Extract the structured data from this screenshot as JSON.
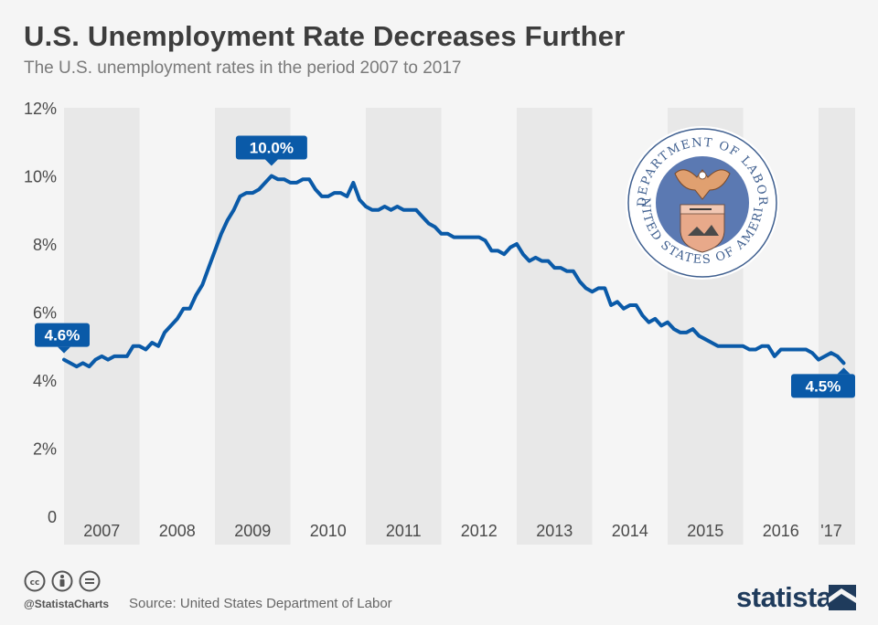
{
  "header": {
    "title": "U.S. Unemployment Rate Decreases Further",
    "subtitle": "The U.S. unemployment rates in the period 2007 to 2017"
  },
  "footer": {
    "handle": "@StatistaCharts",
    "source": "Source: United States Department of Labor",
    "brand": "statista",
    "icons": [
      "creative-commons-icon",
      "attribution-icon",
      "no-derivatives-icon"
    ]
  },
  "seal": {
    "top_text": "DEPARTMENT OF LABOR",
    "bottom_text": "UNITED STATES OF AMERICA"
  },
  "colors": {
    "line": "#0a5aa8",
    "band": "#e8e8e8",
    "background": "#f5f5f5",
    "text": "#3d3d3d"
  },
  "chart_data": {
    "type": "line",
    "title": "U.S. Unemployment Rate Decreases Further",
    "subtitle": "The U.S. unemployment rates in the period 2007 to 2017",
    "xlabel": "",
    "ylabel": "",
    "ylim": [
      0,
      12
    ],
    "yticks": [
      "0",
      "2%",
      "4%",
      "6%",
      "8%",
      "10%",
      "12%"
    ],
    "ytick_values": [
      0,
      2,
      4,
      6,
      8,
      10,
      12
    ],
    "x_start": "2007-01",
    "x_end": "2017-01",
    "x_tick_labels": [
      "2007",
      "2008",
      "2009",
      "2010",
      "2011",
      "2012",
      "2013",
      "2014",
      "2015",
      "2016",
      "'17"
    ],
    "grid": false,
    "legend": "none",
    "series": [
      {
        "frequency": "monthly",
        "values": [
          4.6,
          4.5,
          4.4,
          4.5,
          4.4,
          4.6,
          4.7,
          4.6,
          4.7,
          4.7,
          4.7,
          5.0,
          5.0,
          4.9,
          5.1,
          5.0,
          5.4,
          5.6,
          5.8,
          6.1,
          6.1,
          6.5,
          6.8,
          7.3,
          7.8,
          8.3,
          8.7,
          9.0,
          9.4,
          9.5,
          9.5,
          9.6,
          9.8,
          10.0,
          9.9,
          9.9,
          9.8,
          9.8,
          9.9,
          9.9,
          9.6,
          9.4,
          9.4,
          9.5,
          9.5,
          9.4,
          9.8,
          9.3,
          9.1,
          9.0,
          9.0,
          9.1,
          9.0,
          9.1,
          9.0,
          9.0,
          9.0,
          8.8,
          8.6,
          8.5,
          8.3,
          8.3,
          8.2,
          8.2,
          8.2,
          8.2,
          8.2,
          8.1,
          7.8,
          7.8,
          7.7,
          7.9,
          8.0,
          7.7,
          7.5,
          7.6,
          7.5,
          7.5,
          7.3,
          7.3,
          7.2,
          7.2,
          6.9,
          6.7,
          6.6,
          6.7,
          6.7,
          6.2,
          6.3,
          6.1,
          6.2,
          6.2,
          5.9,
          5.7,
          5.8,
          5.6,
          5.7,
          5.5,
          5.4,
          5.4,
          5.5,
          5.3,
          5.2,
          5.1,
          5.0,
          5.0,
          5.0,
          5.0,
          5.0,
          4.9,
          4.9,
          5.0,
          5.0,
          4.7,
          4.9,
          4.9,
          4.9,
          4.9,
          4.9,
          4.8,
          4.6,
          4.7,
          4.8,
          4.7,
          4.5
        ]
      }
    ],
    "annotations": [
      {
        "label": "4.6%",
        "index": 0
      },
      {
        "label": "10.0%",
        "index": 33
      },
      {
        "label": "4.5%",
        "index": 124
      }
    ]
  }
}
